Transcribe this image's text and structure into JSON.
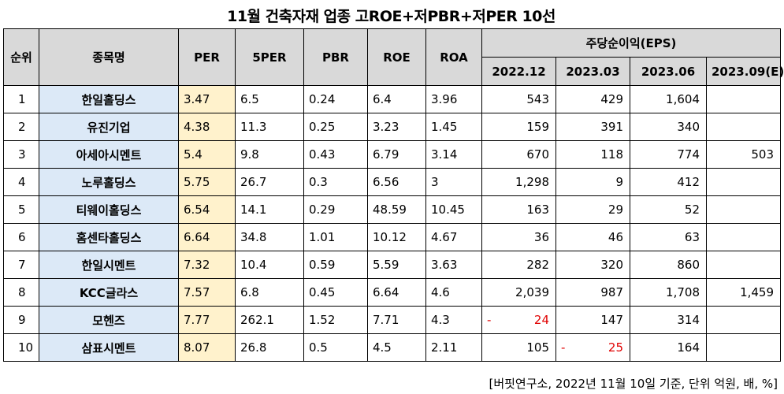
{
  "title": "11월  건축자재 업종 고ROE+저PBR+저PER 10선",
  "headers": {
    "rank": "순위",
    "name": "종목명",
    "per": "PER",
    "per5": "5PER",
    "pbr": "PBR",
    "roe": "ROE",
    "roa": "ROA",
    "eps_group": "주당순이익(EPS)",
    "eps_periods": [
      "2022.12",
      "2023.03",
      "2023.06",
      "2023.09(E)"
    ]
  },
  "rows": [
    {
      "rank": "1",
      "name": "한일홀딩스",
      "per": "3.47",
      "per5": "6.5",
      "pbr": "0.24",
      "roe": "6.4",
      "roa": "3.96",
      "eps": [
        "543",
        "429",
        "1,604",
        ""
      ]
    },
    {
      "rank": "2",
      "name": "유진기업",
      "per": "4.38",
      "per5": "11.3",
      "pbr": "0.25",
      "roe": "3.23",
      "roa": "1.45",
      "eps": [
        "159",
        "391",
        "340",
        ""
      ]
    },
    {
      "rank": "3",
      "name": "아세아시멘트",
      "per": "5.4",
      "per5": "9.8",
      "pbr": "0.43",
      "roe": "6.79",
      "roa": "3.14",
      "eps": [
        "670",
        "118",
        "774",
        "503"
      ]
    },
    {
      "rank": "4",
      "name": "노루홀딩스",
      "per": "5.75",
      "per5": "26.7",
      "pbr": "0.3",
      "roe": "6.56",
      "roa": "3",
      "eps": [
        "1,298",
        "9",
        "412",
        ""
      ]
    },
    {
      "rank": "5",
      "name": "티웨이홀딩스",
      "per": "6.54",
      "per5": "14.1",
      "pbr": "0.29",
      "roe": "48.59",
      "roa": "10.45",
      "eps": [
        "163",
        "29",
        "52",
        ""
      ]
    },
    {
      "rank": "6",
      "name": "홈센타홀딩스",
      "per": "6.64",
      "per5": "34.8",
      "pbr": "1.01",
      "roe": "10.12",
      "roa": "4.67",
      "eps": [
        "36",
        "46",
        "63",
        ""
      ]
    },
    {
      "rank": "7",
      "name": "한일시멘트",
      "per": "7.32",
      "per5": "10.4",
      "pbr": "0.59",
      "roe": "5.59",
      "roa": "3.63",
      "eps": [
        "282",
        "320",
        "860",
        ""
      ]
    },
    {
      "rank": "8",
      "name": "KCC글라스",
      "per": "7.57",
      "per5": "6.8",
      "pbr": "0.45",
      "roe": "6.64",
      "roa": "4.6",
      "eps": [
        "2,039",
        "987",
        "1,708",
        "1,459"
      ]
    },
    {
      "rank": "9",
      "name": "모헨즈",
      "per": "7.77",
      "per5": "262.1",
      "pbr": "1.52",
      "roe": "7.71",
      "roa": "4.3",
      "eps": [
        "-24",
        "147",
        "314",
        ""
      ]
    },
    {
      "rank": "10",
      "name": "삼표시멘트",
      "per": "8.07",
      "per5": "26.8",
      "pbr": "0.5",
      "roe": "4.5",
      "roa": "2.11",
      "eps": [
        "105",
        "-25",
        "164",
        ""
      ]
    }
  ],
  "footer": "[버핏연구소, 2022년 11월 10일 기준, 단위 억원, 배, %]",
  "colors": {
    "header_bg": "#d9d9d9",
    "name_bg": "#dce9f7",
    "per_bg": "#fff2cc",
    "negative": "#e00000"
  }
}
